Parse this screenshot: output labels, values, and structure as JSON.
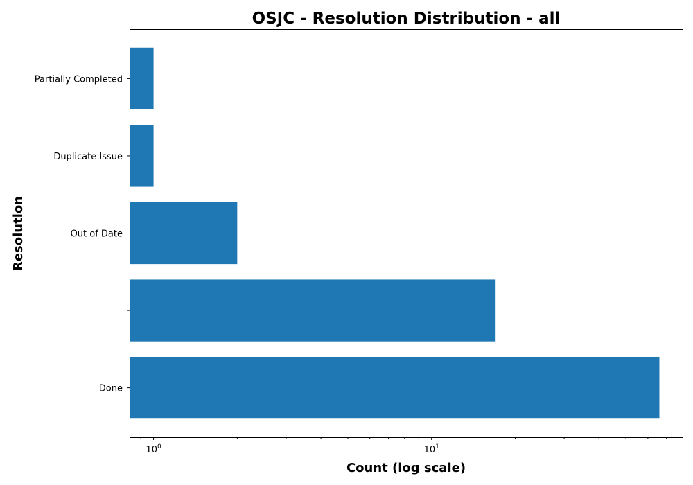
{
  "chart_data": {
    "type": "bar",
    "orientation": "horizontal",
    "title": "OSJC - Resolution Distribution - all",
    "xlabel": "Count (log scale)",
    "ylabel": "Resolution",
    "x_scale": "log",
    "xlim": [
      0.82,
      80
    ],
    "categories": [
      "Done",
      "",
      "Out of Date",
      "Duplicate Issue",
      "Partially Completed"
    ],
    "values": [
      66,
      17,
      2,
      1,
      1
    ],
    "major_ticks": [
      {
        "value": 1,
        "base": "10",
        "exponent": "0"
      },
      {
        "value": 10,
        "base": "10",
        "exponent": "1"
      }
    ],
    "grid": false,
    "legend": "none",
    "bar_color": "#1f77b4"
  }
}
